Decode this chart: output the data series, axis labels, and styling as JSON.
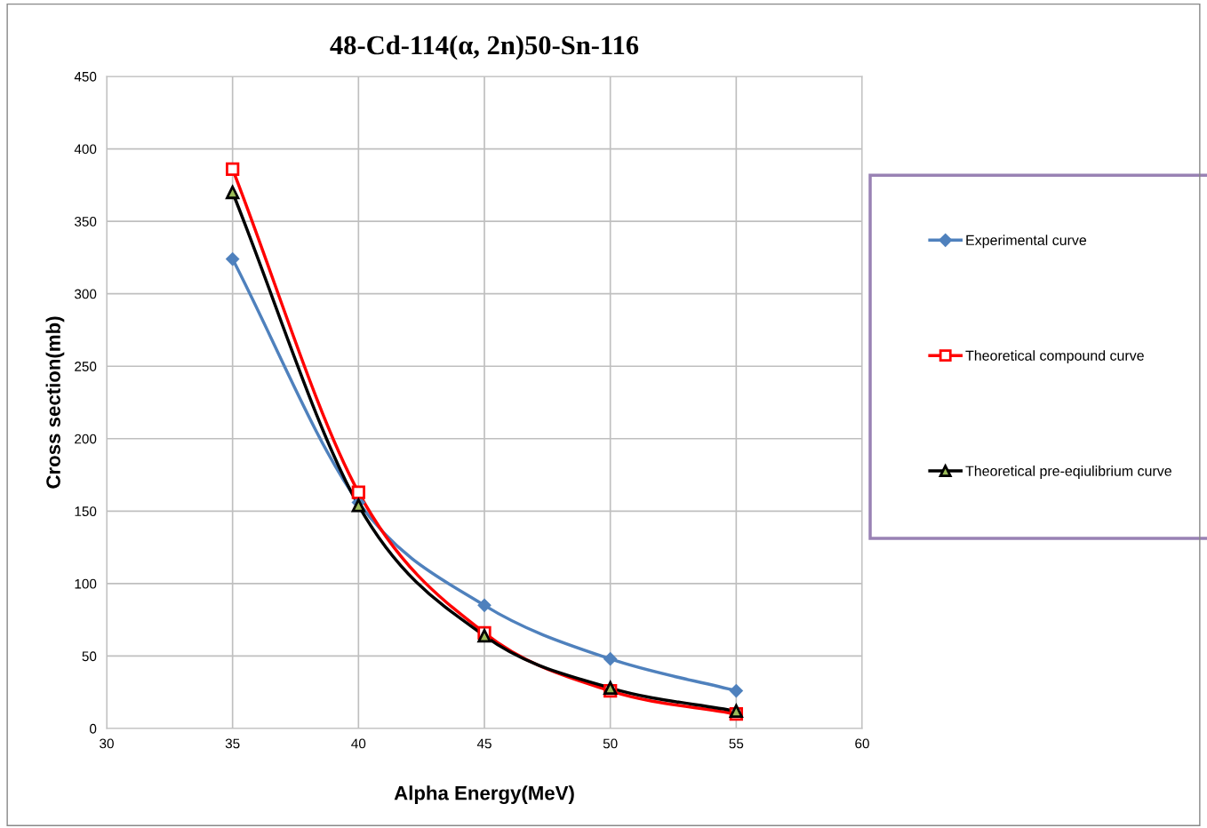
{
  "chart_data": {
    "type": "line",
    "title": "48-Cd-114(α, 2n)50-Sn-116",
    "xlabel": "Alpha Energy(MeV)",
    "ylabel": "Cross section(mb)",
    "x": [
      35,
      40,
      45,
      50,
      55
    ],
    "series": [
      {
        "name": "Experimental curve",
        "color": "#4f81bd",
        "marker": "diamond",
        "values": [
          324,
          156,
          85,
          48,
          26
        ]
      },
      {
        "name": "Theoretical compound curve",
        "color": "#ff0000",
        "marker": "square",
        "values": [
          386,
          163,
          66,
          26,
          10
        ]
      },
      {
        "name": "Theoretical pre-eqiulibrium curve",
        "color": "#000000",
        "marker": "triangle",
        "values": [
          370,
          154,
          64,
          28,
          12
        ]
      }
    ],
    "xlim": [
      30,
      60
    ],
    "xticks": [
      30,
      35,
      40,
      45,
      50,
      55,
      60
    ],
    "ylim": [
      0,
      450
    ],
    "yticks": [
      0,
      50,
      100,
      150,
      200,
      250,
      300,
      350,
      400,
      450
    ],
    "grid": true,
    "legend": "right",
    "line_style": "solid"
  }
}
